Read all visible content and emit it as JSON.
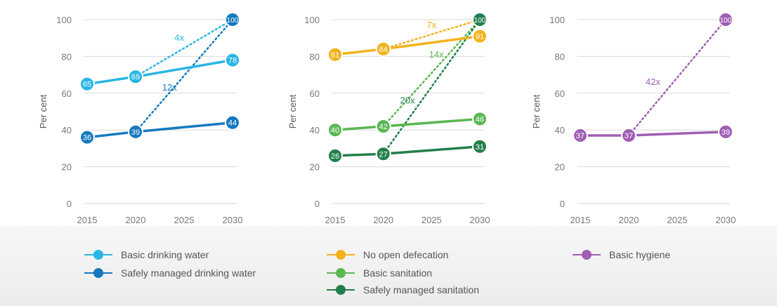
{
  "colors": {
    "basic_water": "#29b6e3",
    "safe_water": "#1479c0",
    "open_defecation": "#f2b21c",
    "basic_sanitation": "#5bb752",
    "safe_sanitation": "#227f4b",
    "hygiene": "#a05fb4",
    "grid": "#d9d9d9",
    "tick_text": "#777777"
  },
  "chart_data": [
    {
      "type": "line",
      "ylabel": "Per cent",
      "x": [
        2015,
        2020,
        2025,
        2030
      ],
      "ylim": [
        0,
        100
      ],
      "yticks": [
        0,
        20,
        40,
        60,
        80,
        100
      ],
      "grid": true,
      "series": [
        {
          "name": "Basic drinking water",
          "color_key": "basic_water",
          "points": [
            [
              2015,
              65
            ],
            [
              2020,
              69
            ],
            [
              2030,
              78
            ]
          ],
          "labels": [
            "65",
            "69",
            "78"
          ],
          "target": {
            "from": [
              2020,
              69
            ],
            "to": [
              2030,
              100
            ],
            "label": "4x",
            "label_at": [
              2024.5,
              90
            ]
          }
        },
        {
          "name": "Safely managed drinking water",
          "color_key": "safe_water",
          "points": [
            [
              2015,
              36
            ],
            [
              2020,
              39
            ],
            [
              2030,
              44
            ]
          ],
          "labels": [
            "36",
            "39",
            "44"
          ],
          "target": {
            "from": [
              2020,
              39
            ],
            "to": [
              2030,
              100
            ],
            "label": "12x",
            "label_at": [
              2023.5,
              63
            ]
          }
        }
      ],
      "target_marker": {
        "point": [
          2030,
          100
        ],
        "label": "100",
        "color_key": "safe_water"
      }
    },
    {
      "type": "line",
      "ylabel": "Per cent",
      "x": [
        2015,
        2020,
        2025,
        2030
      ],
      "ylim": [
        0,
        100
      ],
      "yticks": [
        0,
        20,
        40,
        60,
        80,
        100
      ],
      "grid": true,
      "series": [
        {
          "name": "No open defecation",
          "color_key": "open_defecation",
          "points": [
            [
              2015,
              81
            ],
            [
              2020,
              84
            ],
            [
              2030,
              91
            ]
          ],
          "labels": [
            "81",
            "84",
            "91"
          ],
          "target": {
            "from": [
              2020,
              84
            ],
            "to": [
              2030,
              100
            ],
            "label": "7x",
            "label_at": [
              2025,
              97
            ]
          }
        },
        {
          "name": "Basic sanitation",
          "color_key": "basic_sanitation",
          "points": [
            [
              2015,
              40
            ],
            [
              2020,
              42
            ],
            [
              2030,
              46
            ]
          ],
          "labels": [
            "40",
            "42",
            "46"
          ],
          "target": {
            "from": [
              2020,
              42
            ],
            "to": [
              2030,
              100
            ],
            "label": "14x",
            "label_at": [
              2025.5,
              81
            ]
          }
        },
        {
          "name": "Safely managed sanitation",
          "color_key": "safe_sanitation",
          "points": [
            [
              2015,
              26
            ],
            [
              2020,
              27
            ],
            [
              2030,
              31
            ]
          ],
          "labels": [
            "26",
            "27",
            "31"
          ],
          "target": {
            "from": [
              2020,
              27
            ],
            "to": [
              2030,
              100
            ],
            "label": "20x",
            "label_at": [
              2022.5,
              56
            ]
          }
        }
      ],
      "target_marker": {
        "point": [
          2030,
          100
        ],
        "label": "100",
        "color_key": "safe_sanitation"
      }
    },
    {
      "type": "line",
      "ylabel": "Per cent",
      "x": [
        2015,
        2020,
        2025,
        2030
      ],
      "ylim": [
        0,
        100
      ],
      "yticks": [
        0,
        20,
        40,
        60,
        80,
        100
      ],
      "grid": true,
      "series": [
        {
          "name": "Basic hygiene",
          "color_key": "hygiene",
          "points": [
            [
              2015,
              37
            ],
            [
              2020,
              37
            ],
            [
              2030,
              39
            ]
          ],
          "labels": [
            "37",
            "37",
            "39"
          ],
          "target": {
            "from": [
              2020,
              37
            ],
            "to": [
              2030,
              100
            ],
            "label": "42x",
            "label_at": [
              2022.5,
              66
            ]
          }
        }
      ],
      "target_marker": {
        "point": [
          2030,
          100
        ],
        "label": "100",
        "color_key": "hygiene"
      }
    }
  ],
  "legend": [
    {
      "label": "Basic drinking water",
      "color_key": "basic_water"
    },
    {
      "label": "Safely managed drinking water",
      "color_key": "safe_water"
    },
    {
      "label": "No open defecation",
      "color_key": "open_defecation"
    },
    {
      "label": "Basic sanitation",
      "color_key": "basic_sanitation"
    },
    {
      "label": "Safely managed sanitation",
      "color_key": "safe_sanitation"
    },
    {
      "label": "Basic hygiene",
      "color_key": "hygiene"
    }
  ]
}
